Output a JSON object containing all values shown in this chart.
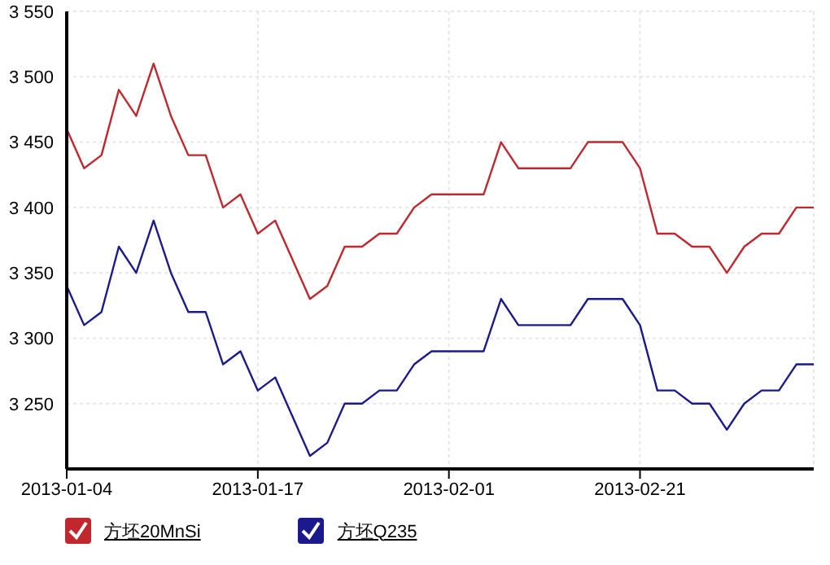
{
  "chart_data": {
    "type": "line",
    "categories": [
      "2013-01-04",
      null,
      null,
      null,
      null,
      null,
      null,
      null,
      null,
      null,
      null,
      "2013-01-17",
      null,
      null,
      null,
      null,
      null,
      null,
      null,
      null,
      null,
      null,
      "2013-02-01",
      null,
      null,
      null,
      null,
      null,
      null,
      null,
      null,
      null,
      null,
      "2013-02-21",
      null,
      null,
      null,
      null,
      null,
      null,
      null,
      null,
      null,
      null
    ],
    "series": [
      {
        "name": "方坯20MnSi",
        "color": "#c0282d",
        "values": [
          3460,
          3430,
          3440,
          3490,
          3470,
          3510,
          3470,
          3440,
          3440,
          3400,
          3410,
          3380,
          3390,
          3360,
          3330,
          3340,
          3370,
          3370,
          3380,
          3380,
          3400,
          3410,
          3410,
          3410,
          3410,
          3450,
          3430,
          3430,
          3430,
          3430,
          3450,
          3450,
          3450,
          3430,
          3380,
          3380,
          3370,
          3370,
          3350,
          3370,
          3380,
          3380,
          3400,
          3400
        ]
      },
      {
        "name": "方坯Q235",
        "color": "#1a1a8c",
        "values": [
          3340,
          3310,
          3320,
          3370,
          3350,
          3390,
          3350,
          3320,
          3320,
          3280,
          3290,
          3260,
          3270,
          3240,
          3210,
          3220,
          3250,
          3250,
          3260,
          3260,
          3280,
          3290,
          3290,
          3290,
          3290,
          3330,
          3310,
          3310,
          3310,
          3310,
          3330,
          3330,
          3330,
          3310,
          3260,
          3260,
          3250,
          3250,
          3230,
          3250,
          3260,
          3260,
          3280,
          3280
        ]
      }
    ],
    "ylim": [
      3200,
      3550
    ],
    "yticks": [
      {
        "value": 3250,
        "label": "3 250"
      },
      {
        "value": 3300,
        "label": "3 300"
      },
      {
        "value": 3350,
        "label": "3 350"
      },
      {
        "value": 3400,
        "label": "3 400"
      },
      {
        "value": 3450,
        "label": "3 450"
      },
      {
        "value": 3500,
        "label": "3 500"
      },
      {
        "value": 3550,
        "label": "3 550"
      }
    ],
    "grid": true,
    "legend": "bottom",
    "marker": "none",
    "line_style": "solid"
  }
}
